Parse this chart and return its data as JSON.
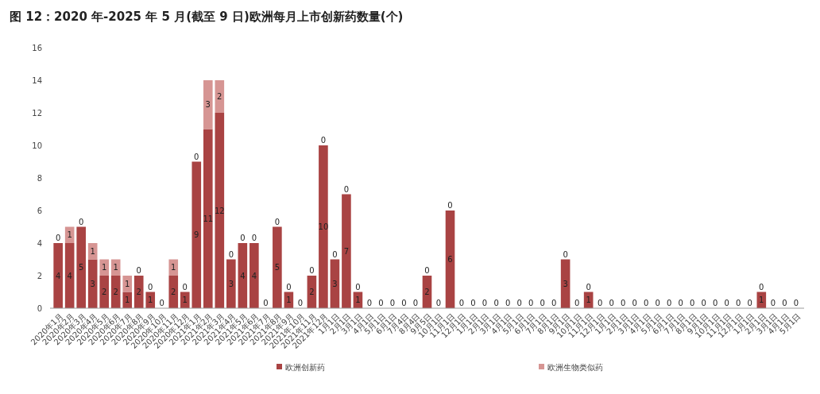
{
  "chart_data": {
    "type": "bar",
    "title": "图 12：2020 年-2025 年 5 月(截至 9 日)欧洲每月上市创新药数量(个)",
    "stacked": true,
    "legend": "bottom",
    "ylim": [
      0,
      16
    ],
    "yticks": [
      0,
      2,
      4,
      6,
      8,
      10,
      12,
      14,
      16
    ],
    "categories": [
      "2020年1月",
      "2020年2月",
      "2020年3月",
      "2020年4月",
      "2020年5月",
      "2020年6月",
      "2020年7月",
      "2020年8月",
      "2020年9月",
      "2020年10月",
      "2020年11月",
      "2020年12月",
      "2021年1月",
      "2021年2月",
      "2021年3月",
      "2021年4月",
      "2021年5月",
      "2021年6月",
      "2021年7月",
      "2021年8月",
      "2021年9月",
      "2021年10月",
      "2021年11月",
      "2021年12月",
      "1月1日",
      "2月1日",
      "3月1日",
      "4月1日",
      "5月1日",
      "6月1日",
      "7月4日",
      "8月4日",
      "9月5日",
      "10月1日",
      "11月1日",
      "12月1日",
      "1月1日",
      "2月1日",
      "3月1日",
      "4月1日",
      "5月1日",
      "6月1日",
      "7月1日",
      "8月1日",
      "9月1日",
      "10月1日",
      "11月1日",
      "12月1日",
      "1月1日",
      "2月1日",
      "3月1日",
      "4月1日",
      "5月1日",
      "6月1日",
      "7月1日",
      "8月1日",
      "9月1日",
      "10月1日",
      "11月1日",
      "12月1日",
      "1月1日",
      "2月1日",
      "3月1日",
      "4月1日",
      "5月1日"
    ],
    "series": [
      {
        "name": "欧洲创新药",
        "color": "#a94343",
        "values": [
          4,
          4,
          5,
          3,
          2,
          2,
          1,
          2,
          1,
          0,
          2,
          1,
          9,
          11,
          12,
          3,
          4,
          4,
          0,
          5,
          1,
          0,
          2,
          10,
          3,
          7,
          1,
          0,
          0,
          0,
          0,
          0,
          2,
          0,
          6,
          0,
          0,
          0,
          0,
          0,
          0,
          0,
          0,
          0,
          3,
          0,
          1,
          0,
          0,
          0,
          0,
          0,
          0,
          0,
          0,
          0,
          0,
          0,
          0,
          0,
          0,
          1,
          0,
          0,
          0
        ],
        "value_labels": [
          "4",
          "4",
          "5",
          "3",
          "2",
          "2",
          "1",
          "2",
          "1",
          null,
          "2",
          "1",
          "9",
          "11",
          "12",
          "3",
          "4",
          "4",
          null,
          "5",
          "1",
          null,
          "2",
          "10",
          "3",
          "7",
          "1",
          null,
          null,
          null,
          null,
          null,
          "2",
          null,
          "6",
          null,
          null,
          null,
          null,
          null,
          null,
          null,
          null,
          null,
          "3",
          null,
          "1",
          null,
          null,
          null,
          null,
          null,
          null,
          null,
          null,
          null,
          null,
          null,
          null,
          null,
          null,
          "1",
          null,
          null,
          null
        ]
      },
      {
        "name": "欧洲生物类似药",
        "color": "#d69593",
        "values": [
          0,
          1,
          0,
          1,
          1,
          1,
          1,
          0,
          0,
          0,
          1,
          0,
          0,
          3,
          2,
          0,
          0,
          0,
          0,
          0,
          0,
          0,
          0,
          0,
          0,
          0,
          0,
          0,
          0,
          0,
          0,
          0,
          0,
          0,
          0,
          0,
          0,
          0,
          0,
          0,
          0,
          0,
          0,
          0,
          0,
          0,
          0,
          0,
          0,
          0,
          0,
          0,
          0,
          0,
          0,
          0,
          0,
          0,
          0,
          0,
          0,
          0,
          0,
          0,
          0
        ],
        "value_labels": [
          "0",
          "1",
          "0",
          "1",
          "1",
          "1",
          "1",
          "0",
          "0",
          "0",
          "1",
          "0",
          "0",
          "3",
          "2",
          "0",
          "0",
          "0",
          "0",
          "0",
          "0",
          "0",
          "0",
          "0",
          "0",
          "0",
          "0",
          "0",
          "0",
          "0",
          "0",
          "0",
          "0",
          "0",
          "0",
          "0",
          "0",
          "0",
          "0",
          "0",
          "0",
          "0",
          "0",
          "0",
          "0",
          "0",
          "0",
          "0",
          "0",
          "0",
          "0",
          "0",
          "0",
          "0",
          "0",
          "0",
          "0",
          "0",
          "0",
          "0",
          "0",
          "0",
          "0",
          "0",
          "0"
        ]
      }
    ]
  }
}
